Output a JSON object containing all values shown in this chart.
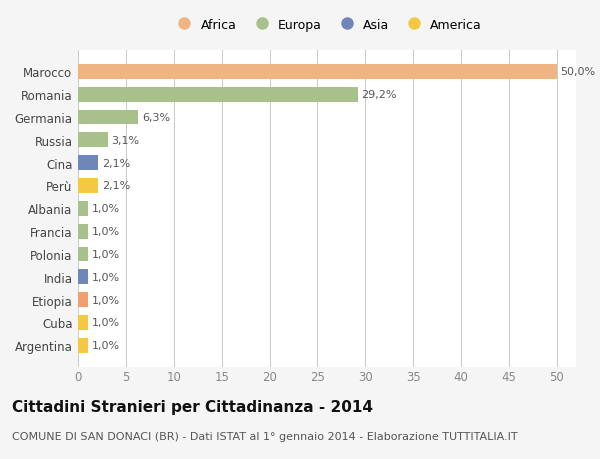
{
  "countries": [
    "Marocco",
    "Romania",
    "Germania",
    "Russia",
    "Cina",
    "Perù",
    "Albania",
    "Francia",
    "Polonia",
    "India",
    "Etiopia",
    "Cuba",
    "Argentina"
  ],
  "values": [
    50.0,
    29.2,
    6.3,
    3.1,
    2.1,
    2.1,
    1.0,
    1.0,
    1.0,
    1.0,
    1.0,
    1.0,
    1.0
  ],
  "labels": [
    "50,0%",
    "29,2%",
    "6,3%",
    "3,1%",
    "2,1%",
    "2,1%",
    "1,0%",
    "1,0%",
    "1,0%",
    "1,0%",
    "1,0%",
    "1,0%",
    "1,0%"
  ],
  "colors": [
    "#F0B482",
    "#A8C08A",
    "#A8C08A",
    "#A8C08A",
    "#6E87B8",
    "#F5C842",
    "#A8C08A",
    "#A8C08A",
    "#A8C08A",
    "#6E87B8",
    "#F0A070",
    "#F5C842",
    "#F5C842"
  ],
  "legend_labels": [
    "Africa",
    "Europa",
    "Asia",
    "America"
  ],
  "legend_colors": [
    "#F0B482",
    "#A8C08A",
    "#6E87B8",
    "#F5C842"
  ],
  "xlim": [
    0,
    52
  ],
  "xticks": [
    0,
    5,
    10,
    15,
    20,
    25,
    30,
    35,
    40,
    45,
    50
  ],
  "title": "Cittadini Stranieri per Cittadinanza - 2014",
  "subtitle": "COMUNE DI SAN DONACI (BR) - Dati ISTAT al 1° gennaio 2014 - Elaborazione TUTTITALIA.IT",
  "background_color": "#F5F5F5",
  "plot_background": "#FFFFFF",
  "grid_color": "#CCCCCC",
  "bar_height": 0.65,
  "label_fontsize": 8,
  "title_fontsize": 11,
  "subtitle_fontsize": 8,
  "ytick_fontsize": 8.5,
  "xtick_fontsize": 8.5
}
